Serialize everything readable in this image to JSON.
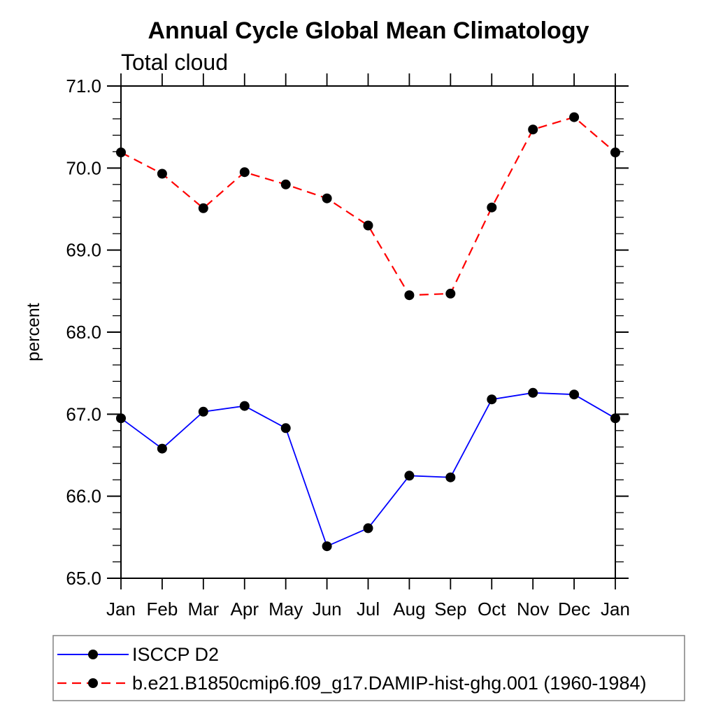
{
  "chart_data": {
    "type": "line",
    "title": "Annual Cycle Global Mean Climatology",
    "subtitle": "Total cloud",
    "ylabel": "percent",
    "xlabel": "",
    "categories": [
      "Jan",
      "Feb",
      "Mar",
      "Apr",
      "May",
      "Jun",
      "Jul",
      "Aug",
      "Sep",
      "Oct",
      "Nov",
      "Dec",
      "Jan"
    ],
    "ylim": [
      65.0,
      71.0
    ],
    "ytick_major": 1.0,
    "ytick_minor": 0.2,
    "ytick_labels": [
      "65.0",
      "66.0",
      "67.0",
      "68.0",
      "69.0",
      "70.0",
      "71.0"
    ],
    "grid": false,
    "legend_position": "bottom-left-box",
    "axis_color": "#000000",
    "marker_color": "#000000",
    "legend_border_color": "#808080",
    "series": [
      {
        "name": "ISCCP D2",
        "color": "#0000ff",
        "style": "solid",
        "marker": "circle",
        "values": [
          66.95,
          66.58,
          67.03,
          67.1,
          66.83,
          65.39,
          65.61,
          66.25,
          66.23,
          67.18,
          67.26,
          67.24,
          66.95
        ]
      },
      {
        "name": "b.e21.B1850cmip6.f09_g17.DAMIP-hist-ghg.001 (1960-1984)",
        "color": "#ff0000",
        "style": "dashed",
        "marker": "circle",
        "values": [
          70.19,
          69.93,
          69.51,
          69.95,
          69.8,
          69.63,
          69.3,
          68.45,
          68.47,
          69.52,
          70.47,
          70.62,
          70.19
        ]
      }
    ]
  }
}
